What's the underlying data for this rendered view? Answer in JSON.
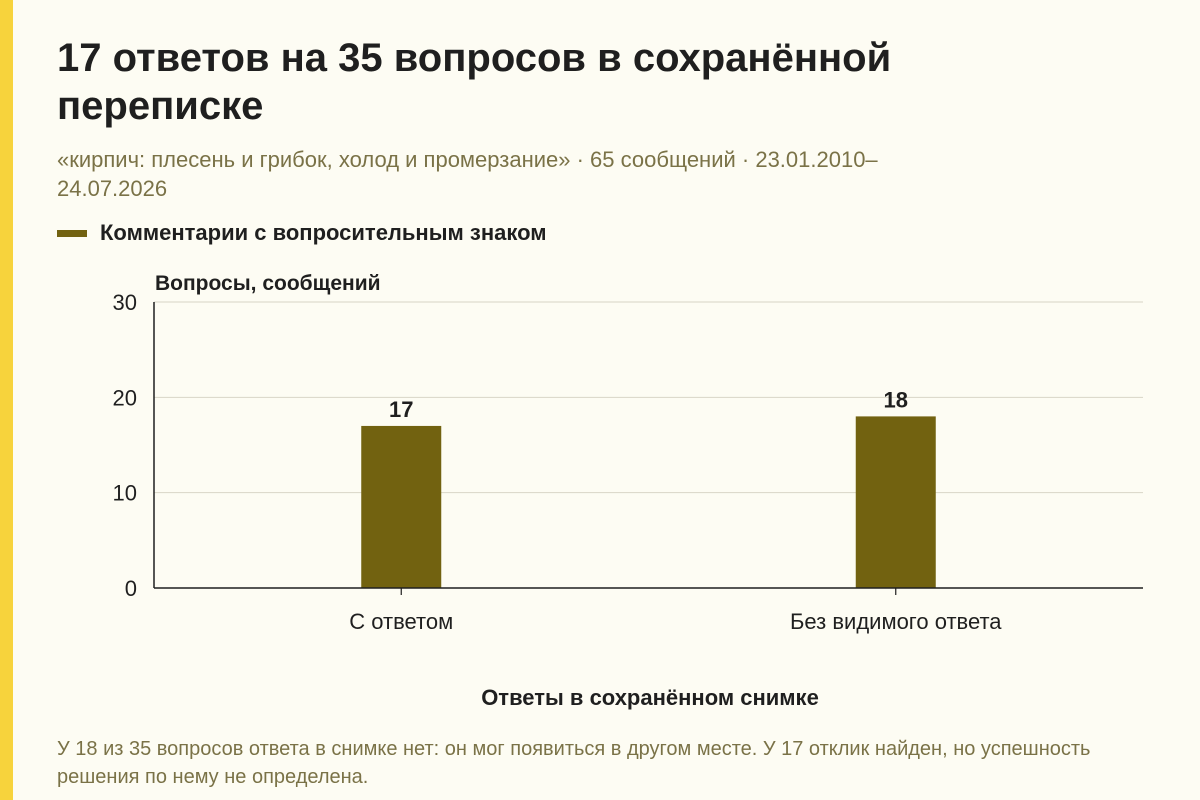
{
  "title": "17 ответов на 35 вопросов в сохранённой переписке",
  "subtitle": "«кирпич: плесень и грибок, холод и промерзание» · 65 сообщений · 23.01.2010–24.07.2026",
  "note": "У 18 из 35 вопросов ответа в снимке нет: он мог появиться в другом месте. У 17 отклик найден, но успешность решения по нему не определена.",
  "colors": {
    "accent": "#f7d33c",
    "bar": "#726210",
    "background": "#fdfcf3",
    "muted_text": "#7a7247",
    "grid": "#d8d5c6"
  },
  "chart_data": {
    "type": "bar",
    "categories": [
      "С ответом",
      "Без видимого ответа"
    ],
    "series": [
      {
        "name": "Комментарии с вопросительным знаком",
        "values": [
          17,
          18
        ]
      }
    ],
    "xlabel": "Ответы в сохранённом снимке",
    "ylabel": "Вопросы, сообщений",
    "ylim": [
      0,
      30
    ],
    "yticks": [
      0,
      10,
      20,
      30
    ],
    "grid": true,
    "legend_position": "top-left",
    "data_labels": true
  }
}
